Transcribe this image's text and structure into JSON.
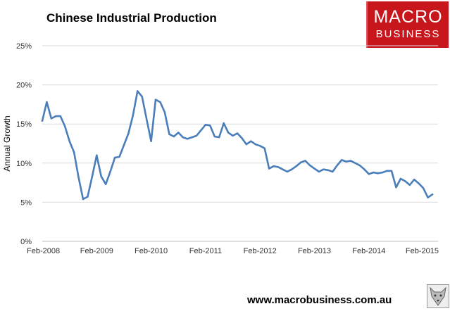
{
  "page": {
    "title": "Chinese Industrial Production",
    "brand_line1": "MACRO",
    "brand_line2": "BUSINESS",
    "url": "www.macrobusiness.com.au",
    "wolf_icon": "wolf-logo-icon"
  },
  "colors": {
    "line": "#4a7ebb",
    "brand": "#c8161d",
    "grid": "#d9d9d9"
  },
  "chart_data": {
    "type": "line",
    "title": "Chinese Industrial Production",
    "ylabel": "Annual Growth",
    "xlabel": "",
    "ylim": [
      0,
      25
    ],
    "yticks": [
      0,
      5,
      10,
      15,
      20,
      25
    ],
    "ytick_labels": [
      "0%",
      "5%",
      "10%",
      "15%",
      "20%",
      "25%"
    ],
    "xtick_labels": [
      "Feb-2008",
      "Feb-2009",
      "Feb-2010",
      "Feb-2011",
      "Feb-2012",
      "Feb-2013",
      "Feb-2014",
      "Feb-2015"
    ],
    "x_start": "Feb-2008",
    "x_end": "Mar-2015",
    "grid": "horizontal",
    "series": [
      {
        "values": [
          15.4,
          17.8,
          15.7,
          16.0,
          16.0,
          14.7,
          12.8,
          11.4,
          8.2,
          5.4,
          5.7,
          8.3,
          11.0,
          8.3,
          7.3,
          8.9,
          10.7,
          10.8,
          12.3,
          13.8,
          16.1,
          19.2,
          18.5,
          15.6,
          12.8,
          18.1,
          17.8,
          16.5,
          13.7,
          13.4,
          13.9,
          13.3,
          13.1,
          13.3,
          13.5,
          14.2,
          14.9,
          14.8,
          13.4,
          13.3,
          15.1,
          13.9,
          13.5,
          13.8,
          13.2,
          12.4,
          12.8,
          12.4,
          12.2,
          11.9,
          9.3,
          9.6,
          9.5,
          9.2,
          8.9,
          9.2,
          9.6,
          10.1,
          10.3,
          9.7,
          9.3,
          8.9,
          9.2,
          9.1,
          8.9,
          9.7,
          10.4,
          10.2,
          10.3,
          10.0,
          9.7,
          9.2,
          8.6,
          8.8,
          8.7,
          8.8,
          9.0,
          9.0,
          6.9,
          8.0,
          7.7,
          7.2,
          7.9,
          7.4,
          6.8,
          5.6,
          6.0
        ]
      }
    ]
  }
}
